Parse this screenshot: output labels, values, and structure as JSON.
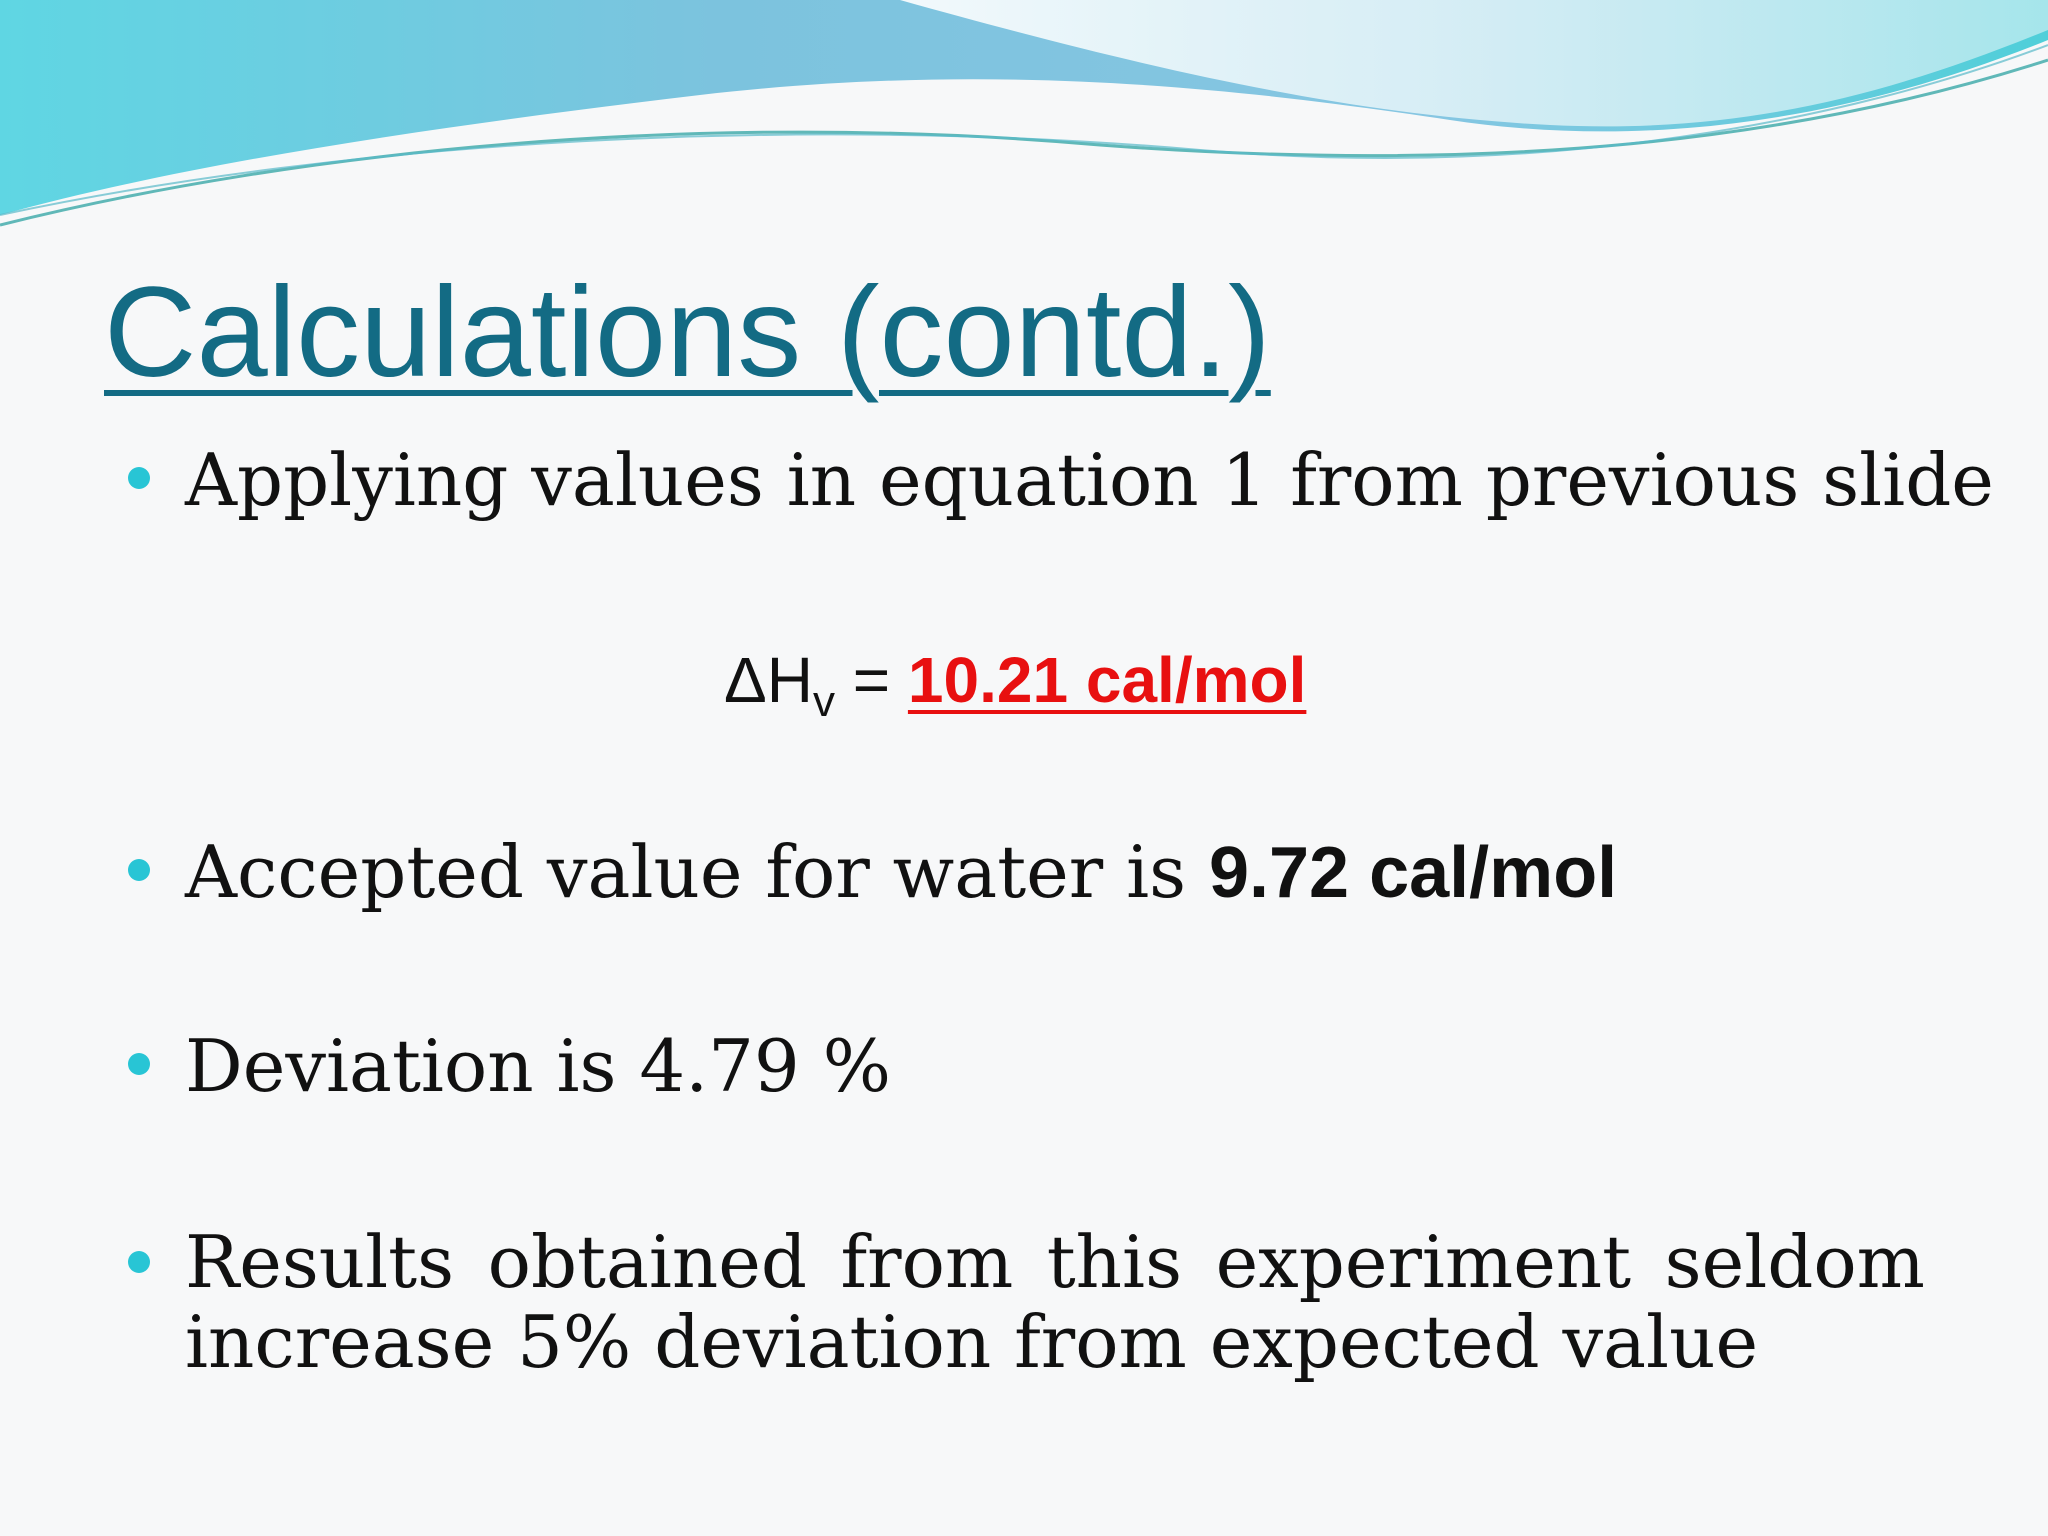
{
  "slide": {
    "title": "Calculations (contd.)",
    "bullets": [
      {
        "text": "Applying values in equation 1 from previous slide"
      },
      {
        "prefix": "Accepted value for water is ",
        "bold": "9.72 cal/mol"
      },
      {
        "text": "Deviation is 4.79 %"
      },
      {
        "words_line1": [
          "Results",
          "obtained",
          "from",
          "this",
          "experiment",
          "seldom"
        ],
        "line2": "increase 5% deviation from expected value"
      }
    ],
    "equation": {
      "lhs": "ΔH",
      "subscript": "v",
      "equals": " = ",
      "result": "10.21 cal/mol"
    }
  },
  "colors": {
    "title": "#136b84",
    "bullet": "#28c5d5",
    "result": "#e81010",
    "text": "#111111"
  }
}
